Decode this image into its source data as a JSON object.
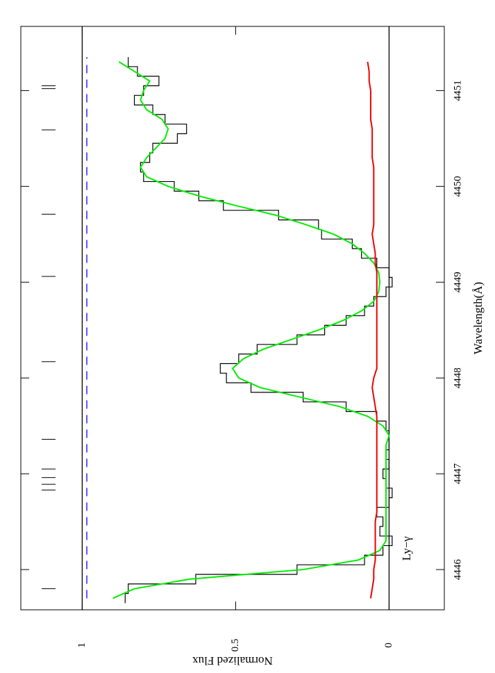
{
  "chart_data": {
    "type": "spectrum",
    "xlabel": "Wavelength(Å)",
    "ylabel": "Normalized Flux",
    "xlim": [
      4445.58,
      4451.67
    ],
    "ylim": [
      -0.18,
      1.2
    ],
    "xticks": [
      4446,
      4447,
      4448,
      4449,
      4450,
      4451
    ],
    "yticks": [
      0,
      0.5,
      1
    ],
    "x": [
      4445.7,
      4445.8,
      4445.9,
      4446.0,
      4446.1,
      4446.2,
      4446.3,
      4446.4,
      4446.5,
      4446.6,
      4446.7,
      4446.8,
      4446.9,
      4447.0,
      4447.1,
      4447.2,
      4447.3,
      4447.4,
      4447.5,
      4447.6,
      4447.7,
      4447.8,
      4447.9,
      4448.0,
      4448.1,
      4448.2,
      4448.3,
      4448.4,
      4448.5,
      4448.6,
      4448.7,
      4448.8,
      4448.9,
      4449.0,
      4449.1,
      4449.2,
      4449.3,
      4449.4,
      4449.5,
      4449.6,
      4449.7,
      4449.8,
      4449.9,
      4450.0,
      4450.1,
      4450.2,
      4450.3,
      4450.4,
      4450.5,
      4450.6,
      4450.7,
      4450.8,
      4450.9,
      4451.0,
      4451.1,
      4451.2,
      4451.3
    ],
    "series": [
      {
        "style": "step",
        "color": "#000000",
        "values": [
          0.86,
          0.85,
          0.63,
          0.3,
          0.08,
          0.02,
          -0.01,
          0.03,
          0.02,
          0.04,
          0.0,
          -0.01,
          0.01,
          0.02,
          0.0,
          0.01,
          0.0,
          0.0,
          0.01,
          0.04,
          0.14,
          0.28,
          0.45,
          0.53,
          0.55,
          0.49,
          0.43,
          0.3,
          0.21,
          0.14,
          0.08,
          0.05,
          0.01,
          -0.01,
          0.0,
          0.04,
          0.09,
          0.12,
          0.22,
          0.23,
          0.36,
          0.54,
          0.62,
          0.7,
          0.8,
          0.81,
          0.78,
          0.77,
          0.69,
          0.66,
          0.73,
          0.77,
          0.83,
          0.8,
          0.75,
          0.82,
          0.85
        ]
      },
      {
        "style": "line",
        "color": "#00ee00",
        "values": [
          0.9,
          0.83,
          0.65,
          0.28,
          0.1,
          0.03,
          0.01,
          0.01,
          0.01,
          0.01,
          0.01,
          0.01,
          0.01,
          0.01,
          0.01,
          0.01,
          0.01,
          0.0,
          0.02,
          0.07,
          0.16,
          0.29,
          0.42,
          0.49,
          0.51,
          0.475,
          0.41,
          0.32,
          0.23,
          0.15,
          0.09,
          0.05,
          0.034,
          0.03,
          0.034,
          0.05,
          0.08,
          0.12,
          0.18,
          0.27,
          0.37,
          0.5,
          0.62,
          0.72,
          0.79,
          0.81,
          0.79,
          0.76,
          0.73,
          0.72,
          0.74,
          0.79,
          0.81,
          0.8,
          0.78,
          0.83,
          0.88
        ]
      },
      {
        "style": "line",
        "color": "#ee0000",
        "values": [
          0.06,
          0.055,
          0.05,
          0.05,
          0.045,
          0.045,
          0.045,
          0.045,
          0.045,
          0.04,
          0.04,
          0.04,
          0.04,
          0.04,
          0.04,
          0.04,
          0.04,
          0.04,
          0.04,
          0.04,
          0.045,
          0.05,
          0.055,
          0.05,
          0.04,
          0.04,
          0.04,
          0.04,
          0.04,
          0.04,
          0.04,
          0.04,
          0.04,
          0.04,
          0.04,
          0.045,
          0.045,
          0.05,
          0.055,
          0.05,
          0.05,
          0.05,
          0.05,
          0.05,
          0.05,
          0.05,
          0.055,
          0.055,
          0.055,
          0.055,
          0.06,
          0.06,
          0.06,
          0.06,
          0.065,
          0.065,
          0.07
        ]
      }
    ],
    "hlines": [
      1,
      0
    ],
    "continuum": {
      "value": 0.985,
      "xrange": [
        4445.7,
        4451.35
      ],
      "color": "#0000ff"
    },
    "components": [
      4445.8,
      4446.83,
      4446.89,
      4446.96,
      4447.05,
      4447.36,
      4448.17,
      4449.06,
      4449.71,
      4450.59,
      4451.02,
      4451.05
    ],
    "annotation": {
      "text": "Ly−γ",
      "x": 4446.22,
      "y": -0.06
    }
  }
}
